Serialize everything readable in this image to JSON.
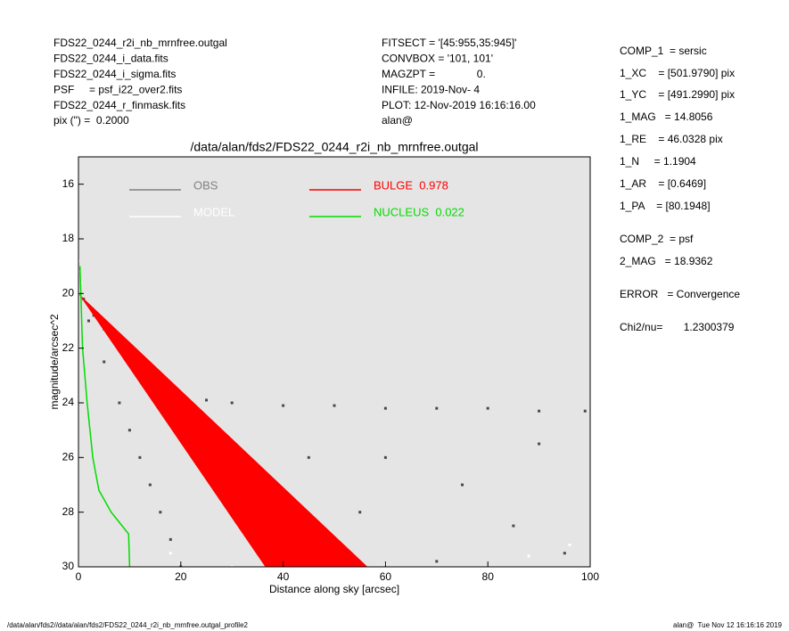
{
  "header": {
    "left": [
      "FDS22_0244_r2i_nb_mrnfree.outgal",
      "FDS22_0244_i_data.fits",
      "FDS22_0244_i_sigma.fits",
      "PSF     = psf_i22_over2.fits",
      "FDS22_0244_r_finmask.fits",
      "pix (\") =  0.2000"
    ],
    "middle": [
      "FITSECT = '[45:955,35:945]'",
      "CONVBOX = '101, 101'",
      "MAGZPT =              0.",
      "INFILE: 2019-Nov- 4",
      "PLOT: 12-Nov-2019 16:16:16.00",
      "alan@"
    ]
  },
  "params": [
    "COMP_1  = sersic",
    "1_XC    = [501.9790] pix",
    "1_YC    = [491.2990] pix",
    "1_MAG   = 14.8056",
    "1_RE    = 46.0328 pix",
    "1_N     = 1.1904",
    "1_AR    = [0.6469]",
    "1_PA    = [80.1948]",
    "COMP_2  = psf",
    "2_MAG   = 18.9362",
    "ERROR   = Convergence",
    "Chi2/nu=       1.2300379"
  ],
  "footer": {
    "left": "/data/alan/fds2//data/alan/fds2/FDS22_0244_r2i_nb_mrnfree.outgal_profile2",
    "right": "alan@  Tue Nov 12 16:16:16 2019"
  },
  "chart_data": {
    "type": "scatter",
    "title": "/data/alan/fds2/FDS22_0244_r2i_nb_mrnfree.outgal",
    "x_label": "Distance along sky [arcsec]",
    "y_label": "magnitude/arcsec^2",
    "xlim": [
      0,
      100
    ],
    "xticks": [
      0,
      20,
      40,
      60,
      80,
      100
    ],
    "ylim": [
      30,
      15
    ],
    "yticks": [
      16,
      18,
      20,
      22,
      24,
      26,
      28,
      30
    ],
    "y_inverted": true,
    "background": "#e5e5e5",
    "series": [
      {
        "name": "OBS",
        "color": "#808080",
        "point_color": "#4a4a4a",
        "kind": "points",
        "x": [
          1,
          3,
          5,
          8,
          10,
          13,
          16,
          20,
          25,
          30,
          40,
          50,
          60,
          70,
          80,
          90,
          99,
          2,
          5,
          8,
          10,
          12,
          14,
          16,
          18,
          20,
          30,
          45,
          60,
          75,
          90,
          55,
          85,
          95,
          40,
          70
        ],
        "values": [
          20.2,
          20.8,
          21.3,
          22,
          22.5,
          23,
          23.4,
          23.7,
          23.9,
          24,
          24.1,
          24.1,
          24.2,
          24.2,
          24.2,
          24.3,
          24.3,
          21,
          22.5,
          24,
          25,
          26,
          27,
          28,
          29,
          30,
          27,
          26,
          26,
          27,
          25.5,
          28,
          28.5,
          29.5,
          29,
          29.8
        ]
      },
      {
        "name": "MODEL",
        "color": "#ffffff",
        "kind": "points",
        "x": [
          0,
          0.3,
          0.5,
          18,
          30,
          60,
          88,
          96
        ],
        "values": [
          18.8,
          19.2,
          19.6,
          29.5,
          30,
          29.9,
          29.6,
          29.2
        ]
      },
      {
        "name": "BULGE  0.978",
        "color": "#ff0000",
        "kind": "area",
        "x": [
          0,
          56.5,
          36.5
        ],
        "values": [
          20,
          30,
          30
        ]
      },
      {
        "name": "NUCLEUS  0.022",
        "color": "#00dd00",
        "kind": "line",
        "x": [
          0.3,
          0.8,
          1.7,
          2.8,
          4,
          6.4,
          9.8,
          10
        ],
        "values": [
          19,
          22,
          24,
          26,
          27.2,
          28,
          28.8,
          30
        ]
      }
    ]
  }
}
